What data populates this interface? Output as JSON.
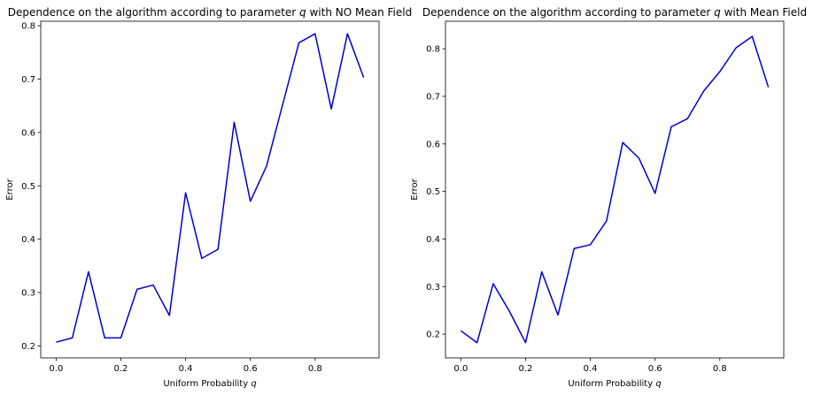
{
  "chart_data": [
    {
      "type": "line",
      "title": "Dependence on the algorithm according to parameter q with NO Mean Field",
      "title_parts": [
        "Dependence on the algorithm according to parameter ",
        "q",
        " with NO Mean Field"
      ],
      "xlabel": "Uniform Probability q",
      "xlabel_parts": [
        "Uniform Probability ",
        "q"
      ],
      "ylabel": "Error",
      "xlim": [
        -0.0475,
        0.9975
      ],
      "ylim": [
        0.1775,
        0.8085
      ],
      "xticks": [
        0.0,
        0.2,
        0.4,
        0.6,
        0.8
      ],
      "xtick_labels": [
        "0.0",
        "0.2",
        "0.4",
        "0.6",
        "0.8"
      ],
      "yticks": [
        0.2,
        0.3,
        0.4,
        0.5,
        0.6,
        0.7,
        0.8
      ],
      "ytick_labels": [
        "0.2",
        "0.3",
        "0.4",
        "0.5",
        "0.6",
        "0.7",
        "0.8"
      ],
      "grid": false,
      "series": [
        {
          "color": "#0000cd",
          "x": [
            0.0,
            0.05,
            0.1,
            0.15,
            0.2,
            0.25,
            0.3,
            0.35,
            0.4,
            0.45,
            0.5,
            0.55,
            0.6,
            0.65,
            0.7,
            0.75,
            0.8,
            0.85,
            0.9,
            0.95
          ],
          "y": [
            0.207,
            0.215,
            0.339,
            0.215,
            0.215,
            0.306,
            0.314,
            0.257,
            0.487,
            0.364,
            0.381,
            0.619,
            0.471,
            0.537,
            0.653,
            0.768,
            0.785,
            0.644,
            0.785,
            0.703
          ]
        }
      ]
    },
    {
      "type": "line",
      "title": "Dependence on the algorithm according to parameter q with Mean Field",
      "title_parts": [
        "Dependence on the algorithm according to parameter ",
        "q",
        " with Mean Field"
      ],
      "xlabel": "Uniform Probability q",
      "xlabel_parts": [
        "Uniform Probability ",
        "q"
      ],
      "ylabel": "Error",
      "xlim": [
        -0.0475,
        0.9975
      ],
      "ylim": [
        0.15,
        0.858
      ],
      "xticks": [
        0.0,
        0.2,
        0.4,
        0.6,
        0.8
      ],
      "xtick_labels": [
        "0.0",
        "0.2",
        "0.4",
        "0.6",
        "0.8"
      ],
      "yticks": [
        0.2,
        0.3,
        0.4,
        0.5,
        0.6,
        0.7,
        0.8
      ],
      "ytick_labels": [
        "0.2",
        "0.3",
        "0.4",
        "0.5",
        "0.6",
        "0.7",
        "0.8"
      ],
      "grid": false,
      "series": [
        {
          "color": "#0000cd",
          "x": [
            0.0,
            0.05,
            0.1,
            0.15,
            0.2,
            0.25,
            0.3,
            0.35,
            0.4,
            0.45,
            0.5,
            0.55,
            0.6,
            0.65,
            0.7,
            0.75,
            0.8,
            0.85,
            0.9,
            0.95
          ],
          "y": [
            0.207,
            0.182,
            0.306,
            0.248,
            0.182,
            0.331,
            0.24,
            0.38,
            0.388,
            0.438,
            0.603,
            0.57,
            0.496,
            0.636,
            0.653,
            0.711,
            0.752,
            0.802,
            0.826,
            0.719
          ]
        }
      ]
    }
  ]
}
